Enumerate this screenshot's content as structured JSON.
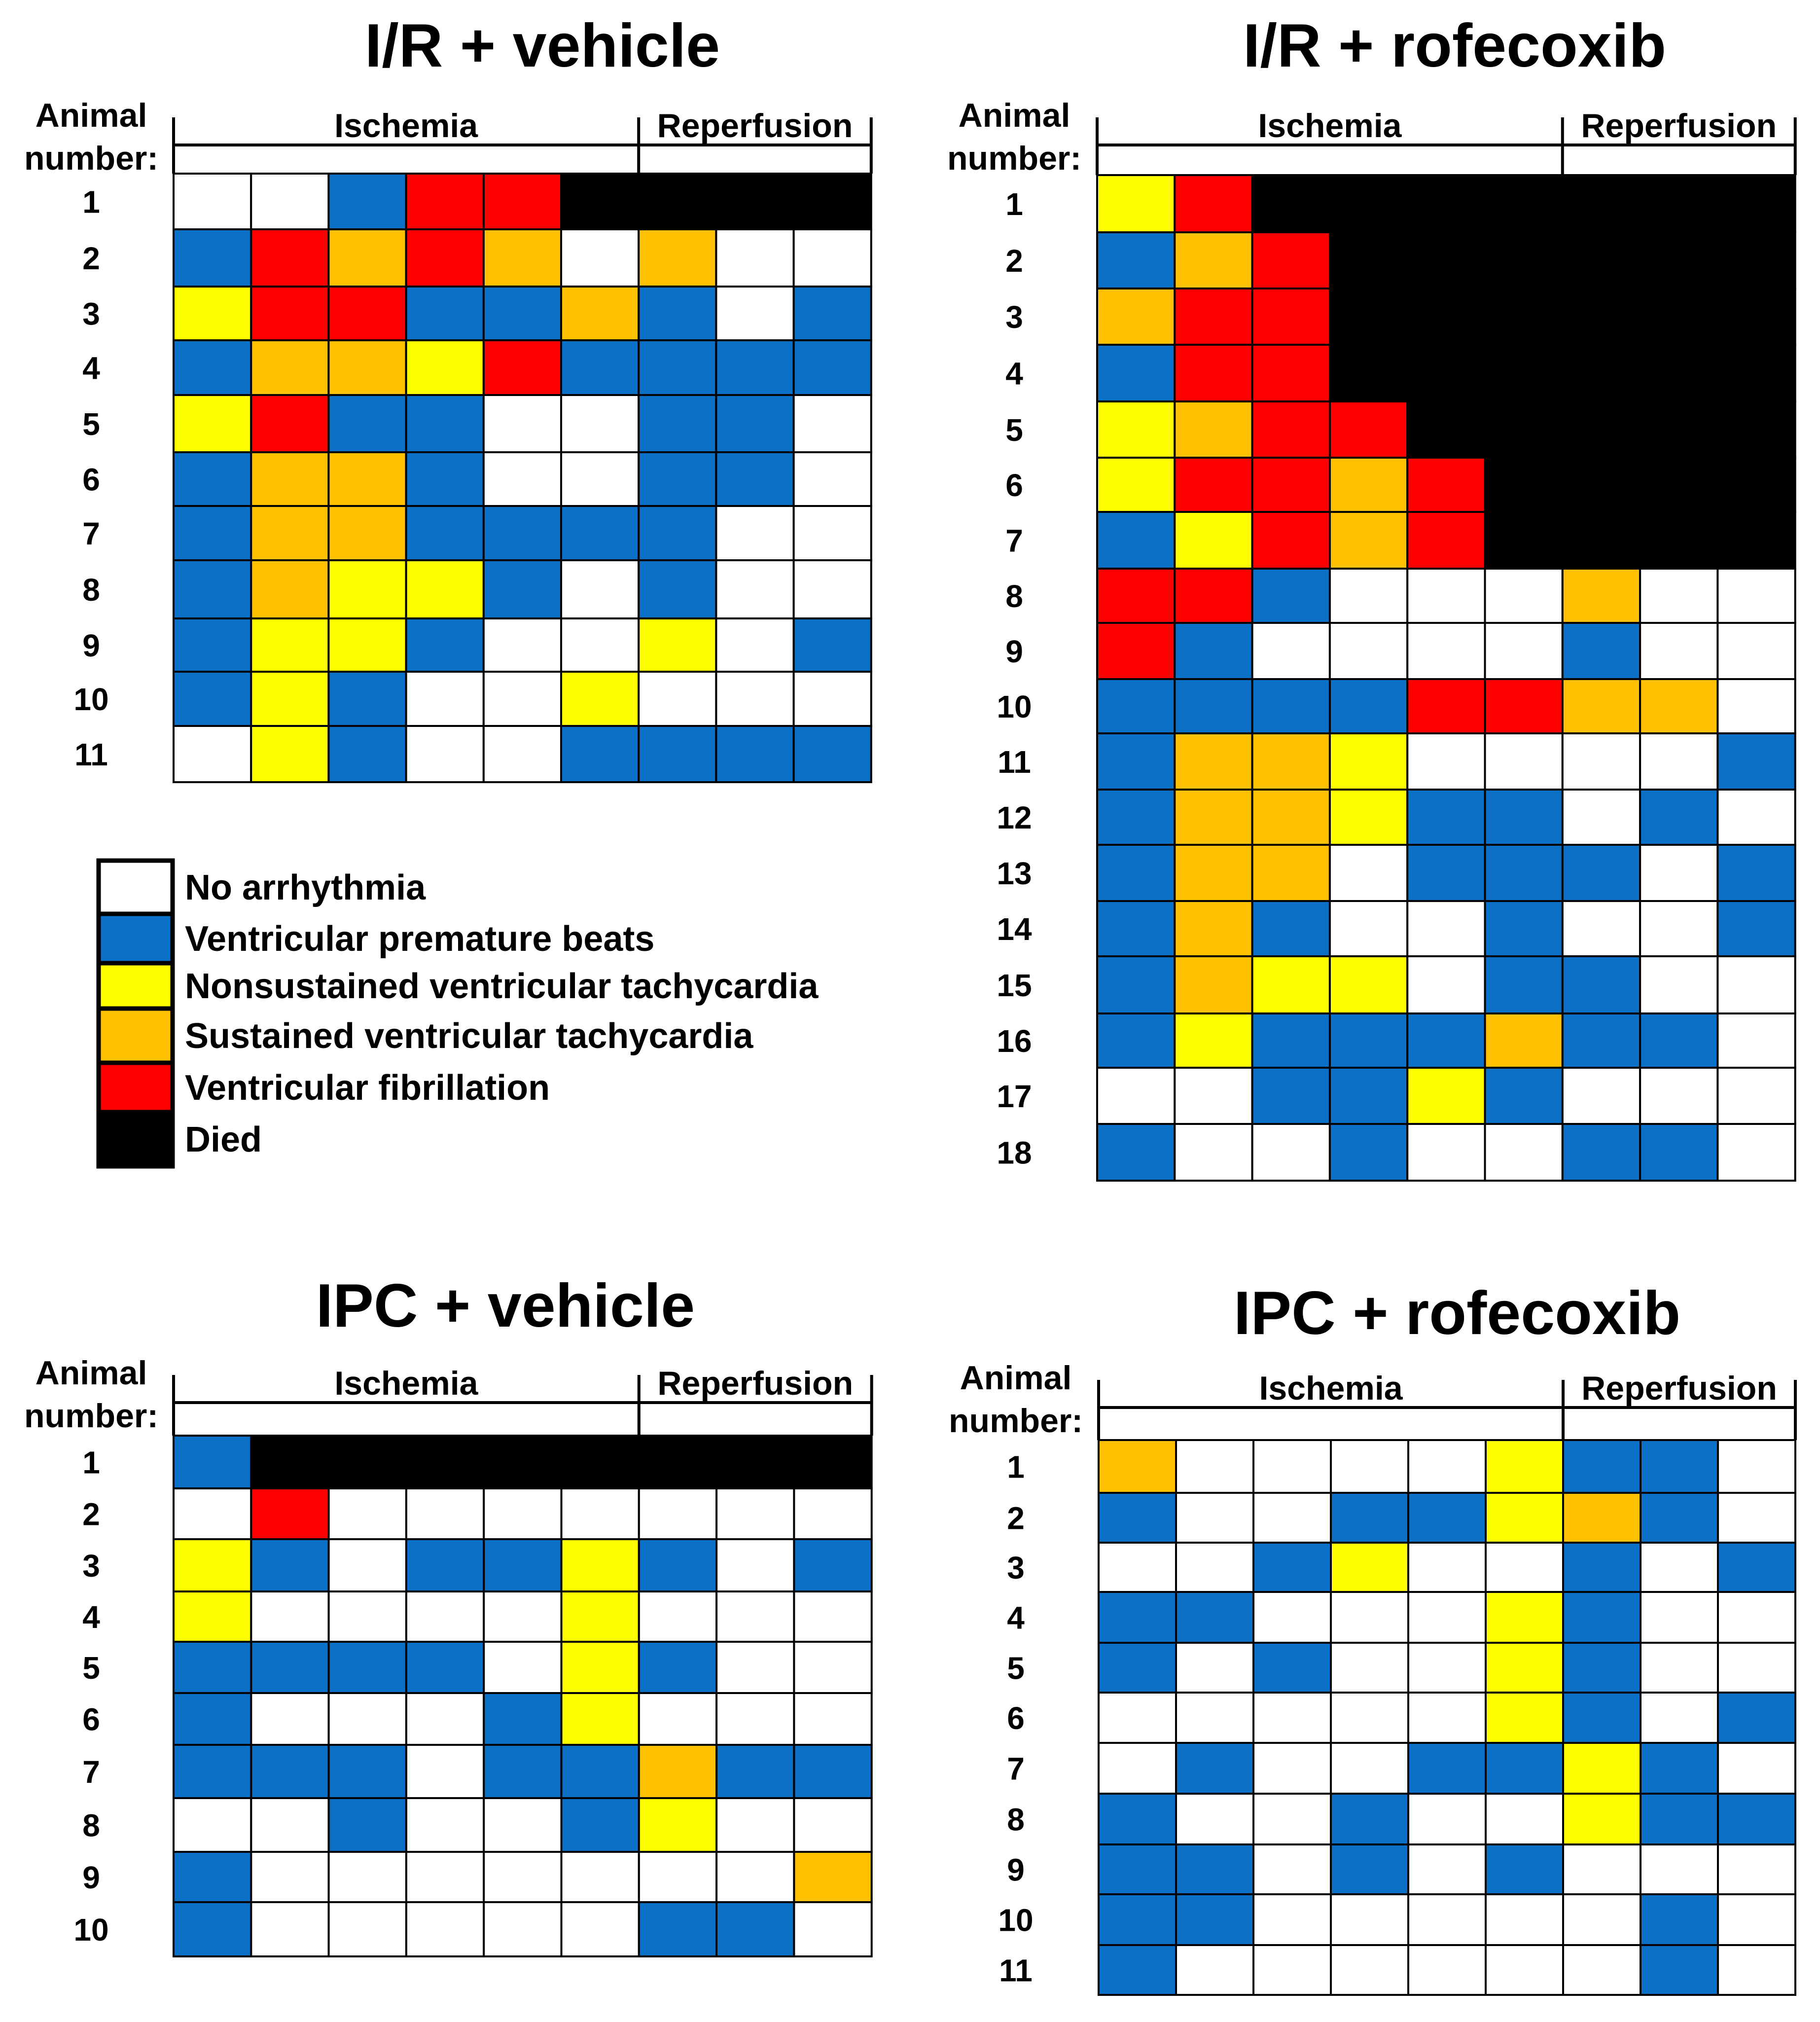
{
  "colors": {
    "N": "#ffffff",
    "V": "#0a71c6",
    "Y": "#ffff00",
    "S": "#ffc000",
    "F": "#ff0000",
    "D": "#000000",
    "grid": "#000000"
  },
  "legend": {
    "items": [
      {
        "code": "N",
        "label": "No arrhythmia"
      },
      {
        "code": "V",
        "label": "Ventricular premature beats"
      },
      {
        "code": "Y",
        "label": "Nonsustained ventricular tachycardia"
      },
      {
        "code": "S",
        "label": "Sustained ventricular tachycardia"
      },
      {
        "code": "F",
        "label": "Ventricular fibrillation"
      },
      {
        "code": "D",
        "label": "Died"
      }
    ]
  },
  "chart_data": [
    {
      "type": "heatmap",
      "title": "I/R + vehicle",
      "row_header": [
        "Animal",
        "number:"
      ],
      "ischemia_label": "Ischemia",
      "reperfusion_label": "Reperfusion",
      "ischemia_columns": 6,
      "reperfusion_columns": 3,
      "animals": [
        "1",
        "2",
        "3",
        "4",
        "5",
        "6",
        "7",
        "8",
        "9",
        "10",
        "11"
      ],
      "rows": [
        [
          "N",
          "N",
          "V",
          "F",
          "F",
          "D",
          "D",
          "D",
          "D"
        ],
        [
          "V",
          "F",
          "S",
          "F",
          "S",
          "N",
          "S",
          "N",
          "N"
        ],
        [
          "Y",
          "F",
          "F",
          "V",
          "V",
          "S",
          "V",
          "N",
          "V"
        ],
        [
          "V",
          "S",
          "S",
          "Y",
          "F",
          "V",
          "V",
          "V",
          "V"
        ],
        [
          "Y",
          "F",
          "V",
          "V",
          "N",
          "N",
          "V",
          "V",
          "N"
        ],
        [
          "V",
          "S",
          "S",
          "V",
          "N",
          "N",
          "V",
          "V",
          "N"
        ],
        [
          "V",
          "S",
          "S",
          "V",
          "V",
          "V",
          "V",
          "N",
          "N"
        ],
        [
          "V",
          "S",
          "Y",
          "Y",
          "V",
          "N",
          "V",
          "N",
          "N"
        ],
        [
          "V",
          "Y",
          "Y",
          "V",
          "N",
          "N",
          "Y",
          "N",
          "V"
        ],
        [
          "V",
          "Y",
          "V",
          "N",
          "N",
          "Y",
          "N",
          "N",
          "N"
        ],
        [
          "N",
          "Y",
          "V",
          "N",
          "N",
          "V",
          "V",
          "V",
          "V"
        ]
      ]
    },
    {
      "type": "heatmap",
      "title": "I/R + rofecoxib",
      "row_header": [
        "Animal",
        "number:"
      ],
      "ischemia_label": "Ischemia",
      "reperfusion_label": "Reperfusion",
      "ischemia_columns": 6,
      "reperfusion_columns": 3,
      "animals": [
        "1",
        "2",
        "3",
        "4",
        "5",
        "6",
        "7",
        "8",
        "9",
        "10",
        "11",
        "12",
        "13",
        "14",
        "15",
        "16",
        "17",
        "18"
      ],
      "rows": [
        [
          "Y",
          "F",
          "D",
          "D",
          "D",
          "D",
          "D",
          "D",
          "D"
        ],
        [
          "V",
          "S",
          "F",
          "D",
          "D",
          "D",
          "D",
          "D",
          "D"
        ],
        [
          "S",
          "F",
          "F",
          "D",
          "D",
          "D",
          "D",
          "D",
          "D"
        ],
        [
          "V",
          "F",
          "F",
          "D",
          "D",
          "D",
          "D",
          "D",
          "D"
        ],
        [
          "Y",
          "S",
          "F",
          "F",
          "D",
          "D",
          "D",
          "D",
          "D"
        ],
        [
          "Y",
          "F",
          "F",
          "S",
          "F",
          "D",
          "D",
          "D",
          "D"
        ],
        [
          "V",
          "Y",
          "F",
          "S",
          "F",
          "D",
          "D",
          "D",
          "D"
        ],
        [
          "F",
          "F",
          "V",
          "N",
          "N",
          "N",
          "S",
          "N",
          "N"
        ],
        [
          "F",
          "V",
          "N",
          "N",
          "N",
          "N",
          "V",
          "N",
          "N"
        ],
        [
          "V",
          "V",
          "V",
          "V",
          "F",
          "F",
          "S",
          "S",
          "N"
        ],
        [
          "V",
          "S",
          "S",
          "Y",
          "N",
          "N",
          "N",
          "N",
          "V"
        ],
        [
          "V",
          "S",
          "S",
          "Y",
          "V",
          "V",
          "N",
          "V",
          "N"
        ],
        [
          "V",
          "S",
          "S",
          "N",
          "V",
          "V",
          "V",
          "N",
          "V"
        ],
        [
          "V",
          "S",
          "V",
          "N",
          "N",
          "V",
          "N",
          "N",
          "V"
        ],
        [
          "V",
          "S",
          "Y",
          "Y",
          "N",
          "V",
          "V",
          "N",
          "N"
        ],
        [
          "V",
          "Y",
          "V",
          "V",
          "V",
          "S",
          "V",
          "V",
          "N"
        ],
        [
          "N",
          "N",
          "V",
          "V",
          "Y",
          "V",
          "N",
          "N",
          "N"
        ],
        [
          "V",
          "N",
          "N",
          "V",
          "N",
          "N",
          "V",
          "V",
          "N"
        ]
      ]
    },
    {
      "type": "heatmap",
      "title": "IPC + vehicle",
      "row_header": [
        "Animal",
        "number:"
      ],
      "ischemia_label": "Ischemia",
      "reperfusion_label": "Reperfusion",
      "ischemia_columns": 6,
      "reperfusion_columns": 3,
      "animals": [
        "1",
        "2",
        "3",
        "4",
        "5",
        "6",
        "7",
        "8",
        "9",
        "10"
      ],
      "rows": [
        [
          "V",
          "D",
          "D",
          "D",
          "D",
          "D",
          "D",
          "D",
          "D"
        ],
        [
          "N",
          "F",
          "N",
          "N",
          "N",
          "N",
          "N",
          "N",
          "N"
        ],
        [
          "Y",
          "V",
          "N",
          "V",
          "V",
          "Y",
          "V",
          "N",
          "V"
        ],
        [
          "Y",
          "N",
          "N",
          "N",
          "N",
          "Y",
          "N",
          "N",
          "N"
        ],
        [
          "V",
          "V",
          "V",
          "V",
          "N",
          "Y",
          "V",
          "N",
          "N"
        ],
        [
          "V",
          "N",
          "N",
          "N",
          "V",
          "Y",
          "N",
          "N",
          "N"
        ],
        [
          "V",
          "V",
          "V",
          "N",
          "V",
          "V",
          "S",
          "V",
          "V"
        ],
        [
          "N",
          "N",
          "V",
          "N",
          "N",
          "V",
          "Y",
          "N",
          "N"
        ],
        [
          "V",
          "N",
          "N",
          "N",
          "N",
          "N",
          "N",
          "N",
          "S"
        ],
        [
          "V",
          "N",
          "N",
          "N",
          "N",
          "N",
          "V",
          "V",
          "N"
        ]
      ]
    },
    {
      "type": "heatmap",
      "title": "IPC + rofecoxib",
      "row_header": [
        "Animal",
        "number:"
      ],
      "ischemia_label": "Ischemia",
      "reperfusion_label": "Reperfusion",
      "ischemia_columns": 6,
      "reperfusion_columns": 3,
      "animals": [
        "1",
        "2",
        "3",
        "4",
        "5",
        "6",
        "7",
        "8",
        "9",
        "10",
        "11"
      ],
      "rows": [
        [
          "S",
          "N",
          "N",
          "N",
          "N",
          "Y",
          "V",
          "V",
          "N"
        ],
        [
          "V",
          "N",
          "N",
          "V",
          "V",
          "Y",
          "S",
          "V",
          "N"
        ],
        [
          "N",
          "N",
          "V",
          "Y",
          "N",
          "N",
          "V",
          "N",
          "V"
        ],
        [
          "V",
          "V",
          "N",
          "N",
          "N",
          "Y",
          "V",
          "N",
          "N"
        ],
        [
          "V",
          "N",
          "V",
          "N",
          "N",
          "Y",
          "V",
          "N",
          "N"
        ],
        [
          "N",
          "N",
          "N",
          "N",
          "N",
          "Y",
          "V",
          "N",
          "V"
        ],
        [
          "N",
          "V",
          "N",
          "N",
          "V",
          "V",
          "Y",
          "V",
          "N"
        ],
        [
          "V",
          "N",
          "N",
          "V",
          "N",
          "N",
          "Y",
          "V",
          "V"
        ],
        [
          "V",
          "V",
          "N",
          "V",
          "N",
          "V",
          "N",
          "N",
          "N"
        ],
        [
          "V",
          "V",
          "N",
          "N",
          "N",
          "N",
          "N",
          "V",
          "N"
        ],
        [
          "V",
          "N",
          "N",
          "N",
          "N",
          "N",
          "N",
          "V",
          "N"
        ]
      ]
    }
  ]
}
